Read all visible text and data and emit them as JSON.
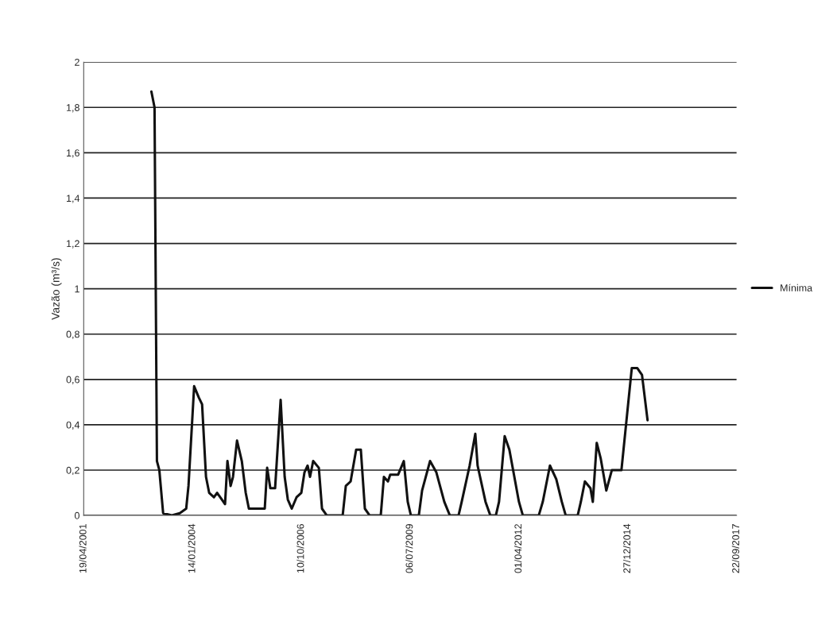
{
  "chart_data": {
    "type": "line",
    "ylabel": "Vazão (m³/s)",
    "x": [
      "2003-01-01",
      "2003-01-30",
      "2003-02-21",
      "2003-03-15",
      "2003-04-19",
      "2003-07-08",
      "2003-09-19",
      "2003-11-17",
      "2003-12-08",
      "2004-01-29",
      "2004-03-12",
      "2004-04-11",
      "2004-05-17",
      "2004-06-15",
      "2004-07-29",
      "2004-08-27",
      "2004-10-10",
      "2004-11-08",
      "2004-11-30",
      "2004-12-29",
      "2005-01-20",
      "2005-02-26",
      "2005-04-11",
      "2005-05-17",
      "2005-06-15",
      "2005-11-08",
      "2005-11-30",
      "2005-12-29",
      "2006-02-11",
      "2006-04-03",
      "2006-05-10",
      "2006-06-08",
      "2006-07-14",
      "2006-08-27",
      "2006-10-10",
      "2006-11-08",
      "2006-12-07",
      "2006-12-29",
      "2007-01-27",
      "2007-03-20",
      "2007-04-18",
      "2007-06-01",
      "2007-10-25",
      "2007-11-23",
      "2008-01-06",
      "2008-02-26",
      "2008-04-09",
      "2008-05-16",
      "2008-06-29",
      "2008-10-09",
      "2008-11-07",
      "2008-12-14",
      "2009-01-04",
      "2009-03-18",
      "2009-05-09",
      "2009-06-14",
      "2009-07-13",
      "2009-09-24",
      "2009-10-24",
      "2010-01-05",
      "2010-03-04",
      "2010-05-16",
      "2010-07-06",
      "2010-09-24",
      "2010-10-23",
      "2011-01-04",
      "2011-02-25",
      "2011-03-18",
      "2011-05-30",
      "2011-07-13",
      "2011-09-02",
      "2011-10-01",
      "2011-11-22",
      "2012-01-04",
      "2012-04-01",
      "2012-05-07",
      "2012-09-30",
      "2012-11-06",
      "2013-01-11",
      "2013-03-10",
      "2013-04-30",
      "2013-06-05",
      "2013-09-23",
      "2013-10-22",
      "2013-11-28",
      "2014-01-18",
      "2014-02-09",
      "2014-03-17",
      "2014-04-23",
      "2014-06-13",
      "2014-08-03",
      "2014-10-30",
      "2015-02-02",
      "2015-03-25",
      "2015-05-07",
      "2015-06-27"
    ],
    "series": [
      {
        "name": "Mínima",
        "color": "#111111",
        "values": [
          1.87,
          1.8,
          0.24,
          0.2,
          0.01,
          0,
          0.01,
          0.03,
          0.13,
          0.57,
          0.52,
          0.49,
          0.17,
          0.1,
          0.08,
          0.1,
          0.07,
          0.05,
          0.24,
          0.13,
          0.17,
          0.33,
          0.24,
          0.1,
          0.03,
          0.03,
          0.21,
          0.12,
          0.12,
          0.51,
          0.17,
          0.07,
          0.03,
          0.08,
          0.1,
          0.19,
          0.22,
          0.17,
          0.24,
          0.21,
          0.03,
          0,
          0,
          0.13,
          0.15,
          0.29,
          0.29,
          0.03,
          0,
          0,
          0.17,
          0.15,
          0.18,
          0.18,
          0.24,
          0.06,
          0,
          0,
          0.11,
          0.24,
          0.19,
          0.06,
          0,
          0,
          0.06,
          0.22,
          0.36,
          0.22,
          0.06,
          0,
          0,
          0.06,
          0.35,
          0.29,
          0.06,
          0,
          0,
          0.06,
          0.22,
          0.16,
          0.06,
          0,
          0,
          0.06,
          0.15,
          0.12,
          0.06,
          0.32,
          0.25,
          0.11,
          0.2,
          0.2,
          0.65,
          0.65,
          0.62,
          0.42
        ]
      }
    ],
    "xlim": [
      "2001-04-19",
      "2017-09-22"
    ],
    "xticks": [
      {
        "value": "2001-04-19",
        "label": "19/04/2001"
      },
      {
        "value": "2004-01-14",
        "label": "14/01/2004"
      },
      {
        "value": "2006-10-10",
        "label": "10/10/2006"
      },
      {
        "value": "2009-07-06",
        "label": "06/07/2009"
      },
      {
        "value": "2012-04-01",
        "label": "01/04/2012"
      },
      {
        "value": "2014-12-27",
        "label": "27/12/2014"
      },
      {
        "value": "2017-09-22",
        "label": "22/09/2017"
      }
    ],
    "ylim": [
      0,
      2
    ],
    "yticks": [
      0,
      {
        "value": 0.2,
        "label": "0,2"
      },
      {
        "value": 0.4,
        "label": "0,4"
      },
      {
        "value": 0.6,
        "label": "0,6"
      },
      {
        "value": 0.8,
        "label": "0,8"
      },
      1,
      {
        "value": 1.2,
        "label": "1,2"
      },
      {
        "value": 1.4,
        "label": "1,4"
      },
      {
        "value": 1.6,
        "label": "1,6"
      },
      {
        "value": 1.8,
        "label": "1,8"
      },
      2
    ],
    "grid": "y",
    "legend": "right",
    "line_style": "solid",
    "marker": "none"
  }
}
